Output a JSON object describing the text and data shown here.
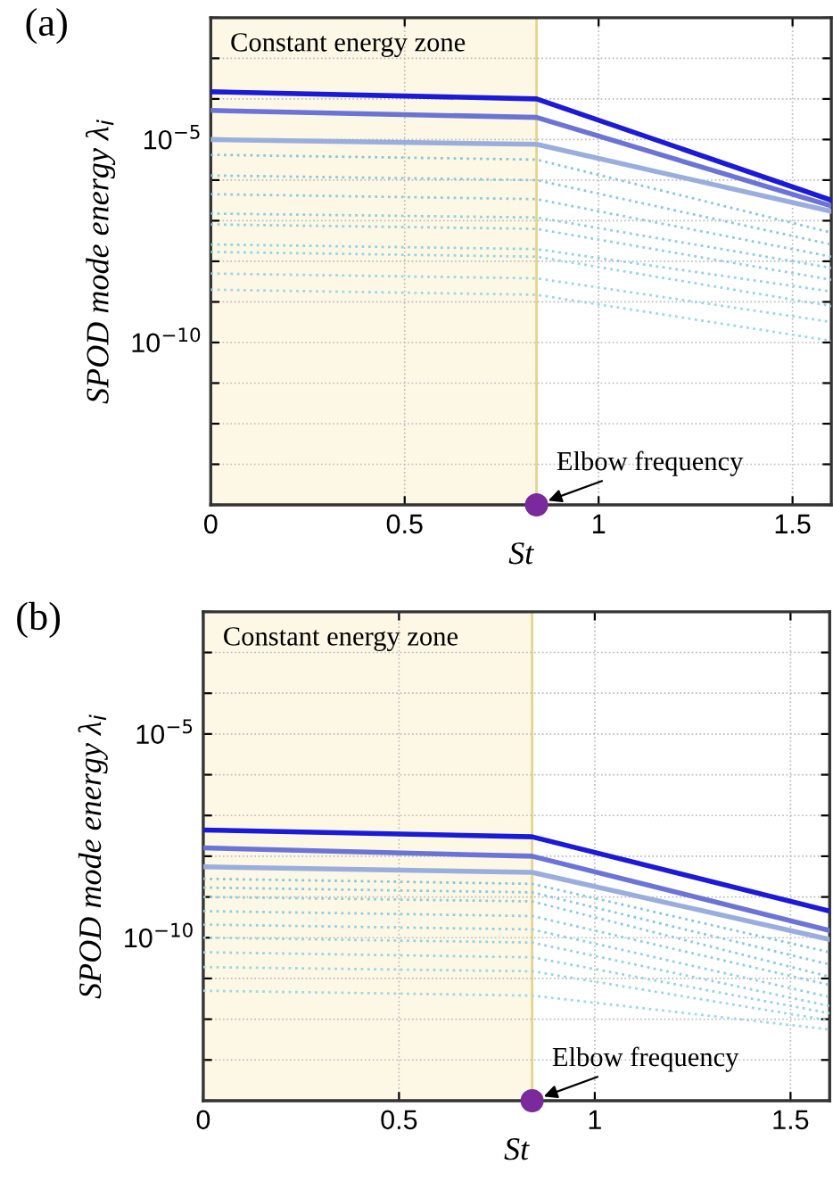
{
  "chart_data": [
    {
      "type": "line",
      "title": "(a)",
      "xlabel": "St",
      "ylabel": "SPOD mode energy λ$_{i}$",
      "log": "y",
      "grid": true,
      "xlim": [
        0,
        1.6
      ],
      "xticks": [
        0,
        0.5,
        1,
        1.5
      ],
      "ylim": [
        1e-14,
        0.01
      ],
      "yticks": [
        {
          "value": 1e-14,
          "label": null
        },
        {
          "value": 1e-13,
          "label": null
        },
        {
          "value": 1e-12,
          "label": null
        },
        {
          "value": 1e-11,
          "label": null
        },
        {
          "value": 1e-10,
          "label": "10$^{−10}$"
        },
        {
          "value": 1e-09,
          "label": null
        },
        {
          "value": 1e-08,
          "label": null
        },
        {
          "value": 1e-07,
          "label": null
        },
        {
          "value": 1e-06,
          "label": null
        },
        {
          "value": 1e-05,
          "label": "10$^{−5}$"
        },
        {
          "value": 0.0001,
          "label": null
        },
        {
          "value": 0.001,
          "label": null
        },
        {
          "value": 0.01,
          "label": null
        }
      ],
      "bands": [
        {
          "axis": "x",
          "from": 0,
          "to": 0.84,
          "label": "Constant energy zone",
          "color": "#fdf8e6"
        }
      ],
      "annotations": [
        {
          "text": "Elbow frequency",
          "x": 0.84,
          "y": 1e-14
        }
      ],
      "series": [
        {
          "x": [
            0,
            0.84,
            1.6
          ],
          "values": [
            0.00015,
            0.0001,
            3.2e-07
          ],
          "color": "#1a1ad8",
          "line_style": "solid"
        },
        {
          "x": [
            0,
            0.84,
            1.6
          ],
          "values": [
            5.2e-05,
            3.5e-05,
            2.3e-07
          ],
          "color": "#6b74d6",
          "line_style": "solid"
        },
        {
          "x": [
            0,
            0.84,
            1.6
          ],
          "values": [
            1e-05,
            7.6e-06,
            1.7e-07
          ],
          "color": "#9aaede",
          "line_style": "solid"
        },
        {
          "x": [
            0,
            0.84,
            1.6
          ],
          "values": [
            4.2e-06,
            3.2e-06,
            5.1e-08
          ],
          "color": "#86c6dc",
          "line_style": "dotted"
        },
        {
          "x": [
            0,
            0.84,
            1.6
          ],
          "values": [
            1.3e-06,
            1e-06,
            2.6e-08
          ],
          "color": "#88c9dd",
          "line_style": "dotted"
        },
        {
          "x": [
            0,
            0.84,
            1.6
          ],
          "values": [
            4.5e-07,
            3.4e-07,
            1.3e-08
          ],
          "color": "#8accde",
          "line_style": "dotted"
        },
        {
          "x": [
            0,
            0.84,
            1.6
          ],
          "values": [
            1.5e-07,
            1.2e-07,
            6.9e-09
          ],
          "color": "#8ccfe0",
          "line_style": "dotted"
        },
        {
          "x": [
            0,
            0.84,
            1.6
          ],
          "values": [
            8.1e-08,
            6.3e-08,
            3.5e-09
          ],
          "color": "#8fd1e1",
          "line_style": "dotted"
        },
        {
          "x": [
            0,
            0.84,
            1.6
          ],
          "values": [
            2.6e-08,
            2e-08,
            1.8e-09
          ],
          "color": "#92d3e2",
          "line_style": "dotted"
        },
        {
          "x": [
            0,
            0.84,
            1.6
          ],
          "values": [
            1.7e-08,
            1.3e-08,
            7.9e-10
          ],
          "color": "#95d5e3",
          "line_style": "dotted"
        },
        {
          "x": [
            0,
            0.84,
            1.6
          ],
          "values": [
            5e-09,
            3.8e-09,
            3.2e-10
          ],
          "color": "#98d7e4",
          "line_style": "dotted"
        },
        {
          "x": [
            0,
            0.84,
            1.6
          ],
          "values": [
            2e-09,
            1.5e-09,
            1.1e-10
          ],
          "color": "#9bd9e5",
          "line_style": "dotted"
        },
        {
          "type": "scatter",
          "x": [
            0.84
          ],
          "values": [
            1e-14
          ],
          "color": "#7a2a9c",
          "marker": "circle"
        }
      ]
    },
    {
      "type": "line",
      "title": "(b)",
      "xlabel": "St",
      "ylabel": "SPOD mode energy λ$_{i}$",
      "log": "y",
      "grid": true,
      "xlim": [
        0,
        1.6
      ],
      "xticks": [
        0,
        0.5,
        1,
        1.5
      ],
      "ylim": [
        1e-14,
        0.01
      ],
      "yticks": [
        {
          "value": 1e-14,
          "label": null
        },
        {
          "value": 1e-13,
          "label": null
        },
        {
          "value": 1e-12,
          "label": null
        },
        {
          "value": 1e-11,
          "label": null
        },
        {
          "value": 1e-10,
          "label": "10$^{−10}$"
        },
        {
          "value": 1e-09,
          "label": null
        },
        {
          "value": 1e-08,
          "label": null
        },
        {
          "value": 1e-07,
          "label": null
        },
        {
          "value": 1e-06,
          "label": null
        },
        {
          "value": 1e-05,
          "label": "10$^{−5}$"
        },
        {
          "value": 0.0001,
          "label": null
        },
        {
          "value": 0.001,
          "label": null
        },
        {
          "value": 0.01,
          "label": null
        }
      ],
      "bands": [
        {
          "axis": "x",
          "from": 0,
          "to": 0.84,
          "label": "Constant energy zone",
          "color": "#fdf8e6"
        }
      ],
      "annotations": [
        {
          "text": "Elbow frequency",
          "x": 0.84,
          "y": 1e-14
        }
      ],
      "series": [
        {
          "x": [
            0,
            0.84,
            1.6
          ],
          "values": [
            4.4e-08,
            3e-08,
            4.5e-10
          ],
          "color": "#1a1ad8",
          "line_style": "solid"
        },
        {
          "x": [
            0,
            0.84,
            1.6
          ],
          "values": [
            1.6e-08,
            1e-08,
            1.5e-10
          ],
          "color": "#6b74d6",
          "line_style": "solid"
        },
        {
          "x": [
            0,
            0.84,
            1.6
          ],
          "values": [
            5.5e-09,
            4e-09,
            9.1e-11
          ],
          "color": "#9aaede",
          "line_style": "solid"
        },
        {
          "x": [
            0,
            0.84,
            1.6
          ],
          "values": [
            2.8e-09,
            2.1e-09,
            4.4e-11
          ],
          "color": "#86c6dc",
          "line_style": "dotted"
        },
        {
          "x": [
            0,
            0.84,
            1.6
          ],
          "values": [
            1.7e-09,
            1.3e-09,
            2.2e-11
          ],
          "color": "#88c9dd",
          "line_style": "dotted"
        },
        {
          "x": [
            0,
            0.84,
            1.6
          ],
          "values": [
            1e-09,
            7.8e-10,
            1.1e-11
          ],
          "color": "#8accde",
          "line_style": "dotted"
        },
        {
          "x": [
            0,
            0.84,
            1.6
          ],
          "values": [
            4.5e-10,
            3.4e-10,
            6.9e-12
          ],
          "color": "#8ccfe0",
          "line_style": "dotted"
        },
        {
          "x": [
            0,
            0.84,
            1.6
          ],
          "values": [
            2.1e-10,
            1.6e-10,
            3.5e-12
          ],
          "color": "#8fd1e1",
          "line_style": "dotted"
        },
        {
          "x": [
            0,
            0.84,
            1.6
          ],
          "values": [
            1e-10,
            7.6e-11,
            2.1e-12
          ],
          "color": "#92d3e2",
          "line_style": "dotted"
        },
        {
          "x": [
            0,
            0.84,
            1.6
          ],
          "values": [
            4.4e-11,
            3.3e-11,
            1.4e-12
          ],
          "color": "#95d5e3",
          "line_style": "dotted"
        },
        {
          "x": [
            0,
            0.84,
            1.6
          ],
          "values": [
            1.9e-11,
            1.5e-11,
            9.3e-13
          ],
          "color": "#98d7e4",
          "line_style": "dotted"
        },
        {
          "x": [
            0,
            0.84,
            1.6
          ],
          "values": [
            5e-12,
            3.8e-12,
            5.6e-13
          ],
          "color": "#9bd9e5",
          "line_style": "dotted"
        },
        {
          "type": "scatter",
          "x": [
            0.84
          ],
          "values": [
            1e-14
          ],
          "color": "#7a2a9c",
          "marker": "circle"
        }
      ]
    }
  ]
}
